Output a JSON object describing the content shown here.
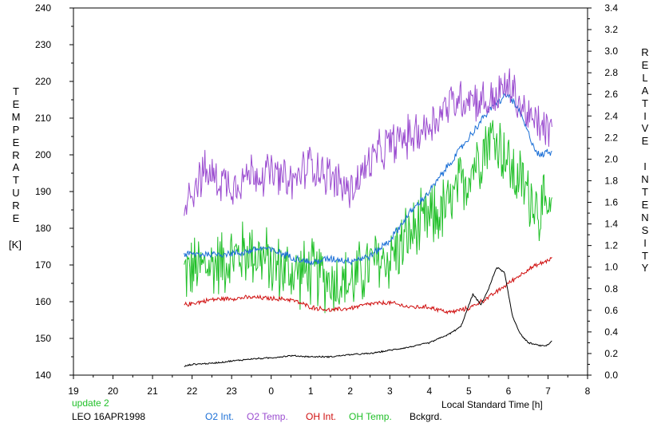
{
  "chart_data": {
    "type": "line",
    "xlabel": "Local Standard Time [h]",
    "x_ticks": [
      "19",
      "20",
      "21",
      "22",
      "23",
      "0",
      "1",
      "2",
      "3",
      "4",
      "5",
      "6",
      "7",
      "8"
    ],
    "xlim": [
      19,
      32
    ],
    "left_axis": {
      "label": "TEMPERATURE",
      "unit": "[K]",
      "ylim": [
        140,
        240
      ],
      "ticks": [
        "140",
        "150",
        "160",
        "170",
        "180",
        "190",
        "200",
        "210",
        "220",
        "230",
        "240"
      ]
    },
    "right_axis": {
      "label": "RELATIVE INTENSITY",
      "ylim": [
        0,
        3.4
      ],
      "ticks": [
        "0.0",
        "0.2",
        "0.4",
        "0.6",
        "0.8",
        "1.0",
        "1.2",
        "1.4",
        "1.6",
        "1.8",
        "2.0",
        "2.2",
        "2.4",
        "2.6",
        "2.8",
        "3.0",
        "3.2",
        "3.4"
      ]
    },
    "series": [
      {
        "name": "O2 Int.",
        "color": "#1b6fd6",
        "axis": "right",
        "noise": 0.03,
        "x": [
          21.8,
          22.5,
          23.2,
          23.8,
          24.5,
          25.0,
          25.5,
          26.0,
          26.5,
          27.0,
          27.5,
          28.0,
          28.5,
          29.0,
          29.5,
          29.8,
          30.0,
          30.3,
          30.6,
          30.8,
          31.0,
          31.1
        ],
        "y": [
          1.12,
          1.12,
          1.13,
          1.18,
          1.1,
          1.04,
          1.08,
          1.06,
          1.1,
          1.25,
          1.5,
          1.7,
          1.95,
          2.2,
          2.45,
          2.55,
          2.6,
          2.42,
          2.15,
          2.02,
          2.08,
          2.05
        ]
      },
      {
        "name": "O2 Temp.",
        "color": "#9b4dd0",
        "axis": "left",
        "noise": 5,
        "x": [
          21.8,
          22.3,
          23.0,
          23.5,
          24.0,
          24.5,
          25.0,
          25.5,
          26.0,
          26.5,
          27.0,
          27.5,
          28.0,
          28.5,
          29.0,
          29.5,
          30.0,
          30.5,
          31.1
        ],
        "y": [
          188,
          195,
          192,
          195,
          195,
          192,
          198,
          194,
          190,
          198,
          203,
          205,
          208,
          214,
          216,
          214,
          219,
          210,
          206
        ]
      },
      {
        "name": "OH Int.",
        "color": "#d01010",
        "axis": "right",
        "noise": 0.018,
        "x": [
          21.8,
          22.5,
          23.5,
          24.5,
          25.0,
          25.5,
          26.0,
          26.5,
          27.0,
          27.5,
          28.0,
          28.5,
          29.0,
          29.5,
          30.0,
          30.5,
          31.1
        ],
        "y": [
          0.65,
          0.7,
          0.72,
          0.7,
          0.63,
          0.6,
          0.62,
          0.66,
          0.67,
          0.63,
          0.63,
          0.58,
          0.62,
          0.72,
          0.85,
          0.98,
          1.08
        ]
      },
      {
        "name": "OH Temp.",
        "color": "#22c02a",
        "axis": "left",
        "noise": 8,
        "x": [
          21.8,
          22.5,
          23.0,
          23.5,
          24.0,
          24.5,
          25.0,
          25.5,
          26.0,
          26.5,
          27.0,
          27.5,
          28.0,
          28.5,
          29.0,
          29.5,
          29.8,
          30.1,
          30.5,
          30.8,
          31.1
        ],
        "y": [
          168,
          170,
          172,
          174,
          170,
          168,
          168,
          166,
          165,
          170,
          172,
          178,
          182,
          186,
          195,
          205,
          203,
          195,
          190,
          185,
          183
        ]
      },
      {
        "name": "Bckgrd.",
        "color": "#000000",
        "axis": "right",
        "noise": 0.006,
        "x": [
          21.8,
          22.0,
          22.5,
          23.0,
          23.5,
          24.0,
          24.5,
          25.0,
          25.5,
          26.0,
          26.5,
          27.0,
          27.5,
          28.0,
          28.5,
          28.8,
          29.1,
          29.3,
          29.5,
          29.7,
          29.9,
          30.1,
          30.3,
          30.5,
          30.7,
          30.9,
          31.0,
          31.1
        ],
        "y": [
          0.08,
          0.1,
          0.11,
          0.13,
          0.15,
          0.16,
          0.18,
          0.17,
          0.17,
          0.19,
          0.2,
          0.23,
          0.26,
          0.3,
          0.38,
          0.45,
          0.75,
          0.65,
          0.8,
          1.0,
          0.95,
          0.55,
          0.38,
          0.3,
          0.28,
          0.27,
          0.28,
          0.32
        ]
      }
    ]
  },
  "update_label": "update 2",
  "site_label": "LEO 16APR1998",
  "update_color": "#22c02a"
}
